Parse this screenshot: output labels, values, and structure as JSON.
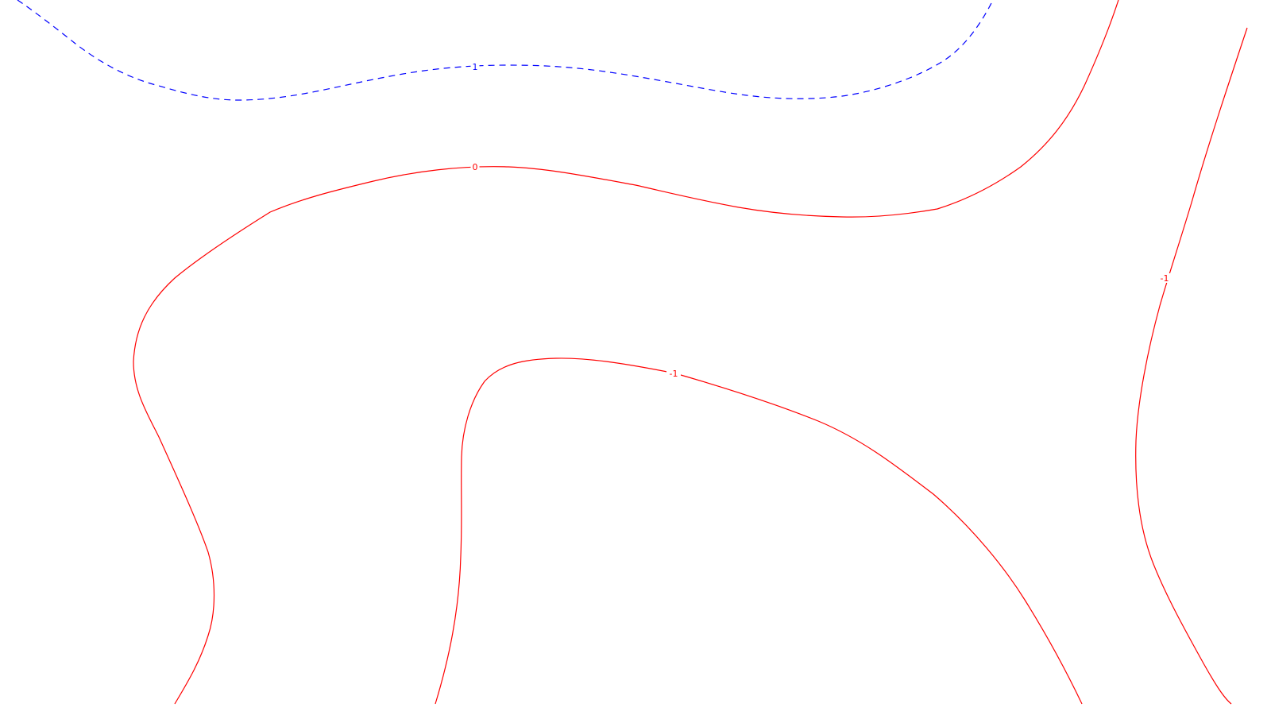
{
  "chart_data": {
    "type": "contour",
    "title": "",
    "xlabel": "",
    "ylabel": "",
    "grid": false,
    "background": "#ffffff",
    "levels": [
      {
        "id": "pos1",
        "level": 1,
        "label": "1",
        "color": "#0000ff",
        "dash": "dashed",
        "label_count": 1
      },
      {
        "id": "zero",
        "level": 0,
        "label": "0",
        "color": "#ff0000",
        "dash": "solid",
        "label_count": 1
      },
      {
        "id": "neg1_center",
        "level": -1,
        "label": "-1",
        "color": "#ff0000",
        "dash": "solid",
        "label_count": 1
      },
      {
        "id": "neg1_right",
        "level": -1,
        "label": "-1",
        "color": "#ff0000",
        "dash": "solid",
        "label_count": 1
      }
    ]
  }
}
